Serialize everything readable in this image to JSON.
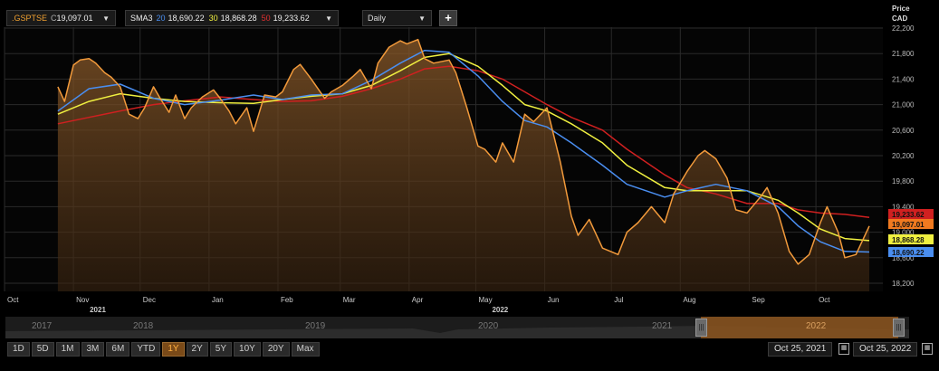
{
  "header": {
    "symbol": ".GSPTSE",
    "close_prefix": "C",
    "close_value": "19,097.01",
    "indicator": "SMA3",
    "sma20_label": "20",
    "sma20_value": "18,690.22",
    "sma30_label": "30",
    "sma30_value": "18,868.28",
    "sma50_label": "50",
    "sma50_value": "19,233.62",
    "interval": "Daily",
    "dropdown_glyph": "▼",
    "add_glyph": "+"
  },
  "axis": {
    "price_label": "Price",
    "currency": "CAD"
  },
  "tags": {
    "sma50": "19,233.62",
    "close": "19,097.01",
    "sma30": "18,868.28",
    "sma20": "18,690.22"
  },
  "navigator": {
    "years": [
      "2017",
      "2018",
      "2019",
      "2020",
      "2021",
      "2022"
    ],
    "handle_glyph": "|||"
  },
  "range_buttons": [
    "1D",
    "5D",
    "1M",
    "3M",
    "6M",
    "YTD",
    "1Y",
    "2Y",
    "5Y",
    "10Y",
    "20Y",
    "Max"
  ],
  "active_range": "1Y",
  "dates": {
    "from": "Oct 25, 2021",
    "to": "Oct 25, 2022"
  },
  "colors": {
    "price": "#f29a3b",
    "price_fill_top": "#8a5a2a",
    "sma20": "#4a8ef0",
    "sma30": "#f0f040",
    "sma50": "#d02020",
    "symbol": "#f0a030",
    "grid": "#2a2a2a",
    "tag_close": "#f07a20",
    "tag_sma30": "#f0f040",
    "tag_sma20": "#4a8ef0",
    "tag_sma50": "#d02020"
  },
  "chart_data": {
    "type": "line",
    "title": "",
    "xlabel": "",
    "ylabel": "Price CAD",
    "ylim": [
      18000,
      22200
    ],
    "y_ticks": [
      18200,
      18600,
      19000,
      19400,
      19800,
      20200,
      20600,
      21000,
      21400,
      21800,
      22200
    ],
    "y_tick_labels": [
      "18,200",
      "18,600",
      "19,000",
      "19,400",
      "19,800",
      "20,200",
      "20,600",
      "21,000",
      "21,400",
      "21,800",
      "22,200"
    ],
    "x_range": [
      "2021-10-25",
      "2022-10-25"
    ],
    "month_ticks": [
      {
        "date": "2021-10-01",
        "label": "Oct"
      },
      {
        "date": "2021-11-01",
        "label": "Nov"
      },
      {
        "date": "2021-12-01",
        "label": "Dec"
      },
      {
        "date": "2022-01-01",
        "label": "Jan"
      },
      {
        "date": "2022-02-01",
        "label": "Feb"
      },
      {
        "date": "2022-03-01",
        "label": "Mar"
      },
      {
        "date": "2022-04-01",
        "label": "Apr"
      },
      {
        "date": "2022-05-01",
        "label": "May"
      },
      {
        "date": "2022-06-01",
        "label": "Jun"
      },
      {
        "date": "2022-07-01",
        "label": "Jul"
      },
      {
        "date": "2022-08-01",
        "label": "Aug"
      },
      {
        "date": "2022-09-01",
        "label": "Sep"
      },
      {
        "date": "2022-10-01",
        "label": "Oct"
      }
    ],
    "year_labels": [
      {
        "date": "2021-11-01",
        "label": "2021"
      },
      {
        "date": "2022-05-01",
        "label": "2022"
      }
    ],
    "series": [
      {
        "name": ".GSPTSE",
        "x": [
          "2021-10-25",
          "2021-10-28",
          "2021-11-01",
          "2021-11-04",
          "2021-11-08",
          "2021-11-11",
          "2021-11-15",
          "2021-11-18",
          "2021-11-22",
          "2021-11-26",
          "2021-11-30",
          "2021-12-03",
          "2021-12-07",
          "2021-12-10",
          "2021-12-14",
          "2021-12-17",
          "2021-12-21",
          "2021-12-24",
          "2021-12-29",
          "2022-01-03",
          "2022-01-06",
          "2022-01-10",
          "2022-01-13",
          "2022-01-18",
          "2022-01-21",
          "2022-01-26",
          "2022-01-31",
          "2022-02-03",
          "2022-02-08",
          "2022-02-11",
          "2022-02-16",
          "2022-02-22",
          "2022-02-25",
          "2022-03-02",
          "2022-03-07",
          "2022-03-10",
          "2022-03-15",
          "2022-03-18",
          "2022-03-23",
          "2022-03-28",
          "2022-03-31",
          "2022-04-05",
          "2022-04-08",
          "2022-04-12",
          "2022-04-19",
          "2022-04-22",
          "2022-04-27",
          "2022-05-02",
          "2022-05-05",
          "2022-05-10",
          "2022-05-13",
          "2022-05-18",
          "2022-05-23",
          "2022-05-27",
          "2022-06-02",
          "2022-06-08",
          "2022-06-13",
          "2022-06-16",
          "2022-06-21",
          "2022-06-27",
          "2022-07-04",
          "2022-07-08",
          "2022-07-13",
          "2022-07-19",
          "2022-07-25",
          "2022-07-29",
          "2022-08-04",
          "2022-08-09",
          "2022-08-12",
          "2022-08-17",
          "2022-08-22",
          "2022-08-26",
          "2022-08-31",
          "2022-09-06",
          "2022-09-09",
          "2022-09-14",
          "2022-09-19",
          "2022-09-23",
          "2022-09-28",
          "2022-10-03",
          "2022-10-06",
          "2022-10-11",
          "2022-10-14",
          "2022-10-19",
          "2022-10-25"
        ],
        "values": [
          21280,
          21050,
          21620,
          21700,
          21720,
          21650,
          21500,
          21430,
          21280,
          20850,
          20780,
          20950,
          21280,
          21100,
          20880,
          21150,
          20780,
          20950,
          21120,
          21230,
          21100,
          20900,
          20700,
          20950,
          20580,
          21150,
          21120,
          21200,
          21550,
          21630,
          21400,
          21100,
          21200,
          21300,
          21450,
          21550,
          21250,
          21650,
          21900,
          22000,
          21950,
          22020,
          21720,
          21650,
          21700,
          21500,
          20950,
          20350,
          20300,
          20100,
          20400,
          20100,
          20850,
          20730,
          20950,
          20100,
          19250,
          18950,
          19200,
          18750,
          18650,
          19000,
          19150,
          19400,
          19150,
          19600,
          19950,
          20200,
          20280,
          20150,
          19850,
          19350,
          19300,
          19550,
          19700,
          19300,
          18700,
          18500,
          18650,
          19150,
          19400,
          19000,
          18600,
          18650,
          19097
        ]
      },
      {
        "name": "20",
        "x": [
          "2021-10-25",
          "2021-11-08",
          "2021-11-22",
          "2021-12-07",
          "2021-12-21",
          "2022-01-06",
          "2022-01-21",
          "2022-02-03",
          "2022-02-16",
          "2022-03-02",
          "2022-03-15",
          "2022-03-28",
          "2022-04-08",
          "2022-04-19",
          "2022-05-02",
          "2022-05-13",
          "2022-05-23",
          "2022-06-02",
          "2022-06-13",
          "2022-06-27",
          "2022-07-08",
          "2022-07-25",
          "2022-08-04",
          "2022-08-17",
          "2022-08-31",
          "2022-09-14",
          "2022-09-23",
          "2022-10-03",
          "2022-10-14",
          "2022-10-25"
        ],
        "values": [
          20900,
          21250,
          21320,
          21100,
          21000,
          21070,
          21150,
          21080,
          21150,
          21170,
          21380,
          21650,
          21850,
          21820,
          21450,
          21050,
          20750,
          20650,
          20400,
          20050,
          19750,
          19550,
          19650,
          19750,
          19650,
          19400,
          19100,
          18850,
          18700,
          18690
        ]
      },
      {
        "name": "30",
        "x": [
          "2021-10-25",
          "2021-11-08",
          "2021-11-22",
          "2021-12-07",
          "2021-12-21",
          "2022-01-06",
          "2022-01-21",
          "2022-02-03",
          "2022-02-16",
          "2022-03-02",
          "2022-03-15",
          "2022-03-28",
          "2022-04-08",
          "2022-04-19",
          "2022-05-02",
          "2022-05-13",
          "2022-05-23",
          "2022-06-02",
          "2022-06-13",
          "2022-06-27",
          "2022-07-08",
          "2022-07-25",
          "2022-08-04",
          "2022-08-17",
          "2022-08-31",
          "2022-09-14",
          "2022-09-23",
          "2022-10-03",
          "2022-10-14",
          "2022-10-25"
        ],
        "values": [
          20850,
          21050,
          21170,
          21100,
          21050,
          21030,
          21020,
          21080,
          21130,
          21170,
          21300,
          21530,
          21740,
          21800,
          21600,
          21300,
          21000,
          20900,
          20700,
          20400,
          20050,
          19700,
          19650,
          19650,
          19650,
          19500,
          19300,
          19050,
          18900,
          18868
        ]
      },
      {
        "name": "50",
        "x": [
          "2021-10-25",
          "2021-11-08",
          "2021-11-22",
          "2021-12-07",
          "2021-12-21",
          "2022-01-06",
          "2022-01-21",
          "2022-02-03",
          "2022-02-16",
          "2022-03-02",
          "2022-03-15",
          "2022-03-28",
          "2022-04-08",
          "2022-04-19",
          "2022-05-02",
          "2022-05-13",
          "2022-05-23",
          "2022-06-02",
          "2022-06-13",
          "2022-06-27",
          "2022-07-08",
          "2022-07-25",
          "2022-08-04",
          "2022-08-17",
          "2022-08-31",
          "2022-09-14",
          "2022-09-23",
          "2022-10-03",
          "2022-10-14",
          "2022-10-25"
        ],
        "values": [
          20700,
          20800,
          20900,
          21000,
          21060,
          21120,
          21080,
          21050,
          21060,
          21130,
          21250,
          21400,
          21560,
          21600,
          21530,
          21400,
          21200,
          21000,
          20800,
          20600,
          20300,
          19900,
          19700,
          19600,
          19450,
          19450,
          19350,
          19300,
          19280,
          19233
        ]
      }
    ]
  }
}
